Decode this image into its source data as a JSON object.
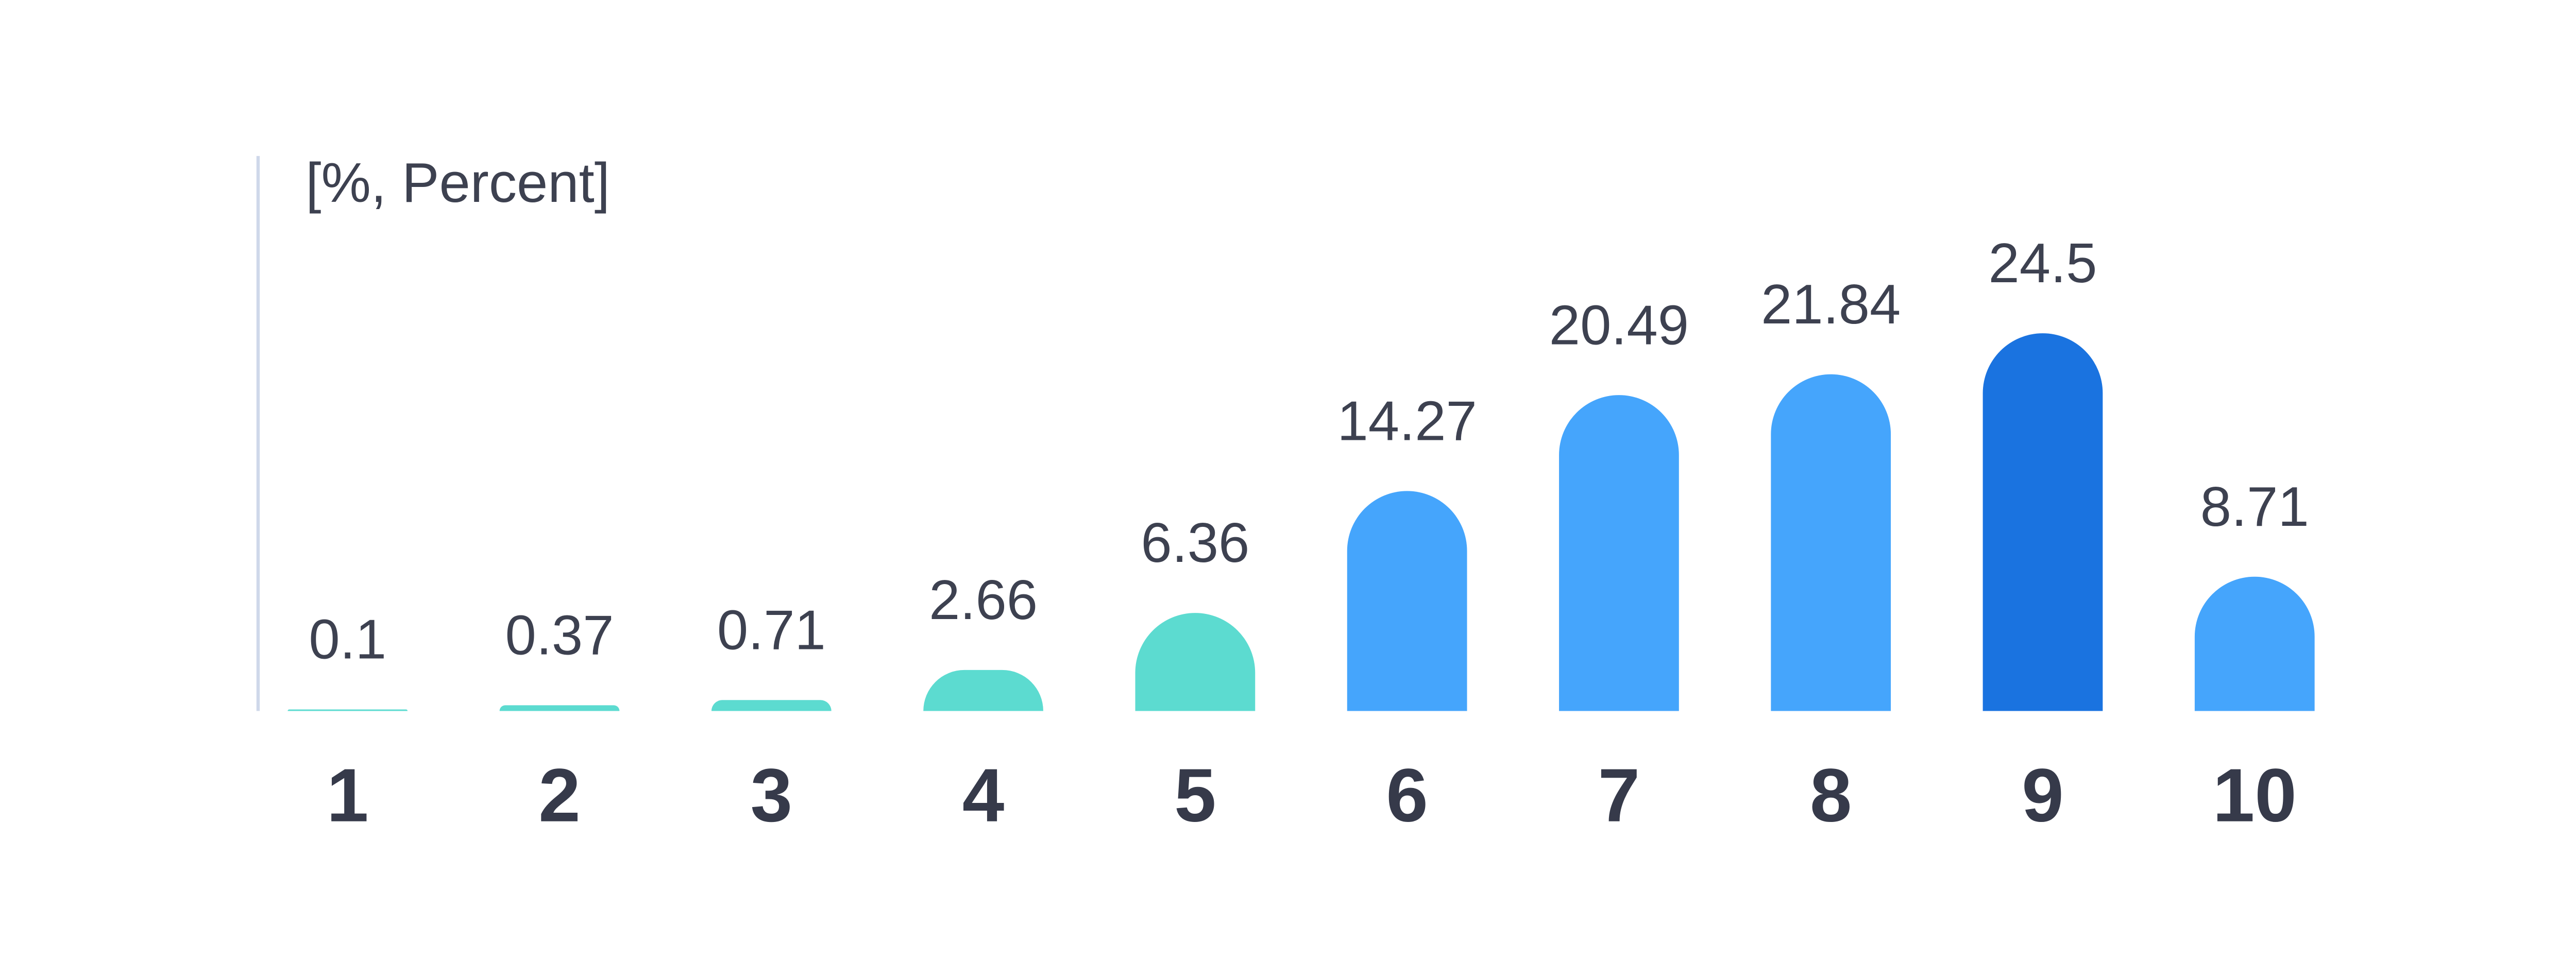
{
  "chart_data": {
    "type": "bar",
    "y_axis_label": "[%, Percent]",
    "categories": [
      "1",
      "2",
      "3",
      "4",
      "5",
      "6",
      "7",
      "8",
      "9",
      "10"
    ],
    "values": [
      0.1,
      0.37,
      0.71,
      2.66,
      6.36,
      14.27,
      20.49,
      21.84,
      24.5,
      8.71
    ],
    "colors": [
      "#5cdbd0",
      "#5cdbd0",
      "#5cdbd0",
      "#5cdbd0",
      "#5cdbd0",
      "#45a5fc",
      "#45a5fc",
      "#45a5fc",
      "#1a73e0",
      "#45a5fc"
    ],
    "ylim": [
      0,
      36
    ],
    "grid": false
  }
}
